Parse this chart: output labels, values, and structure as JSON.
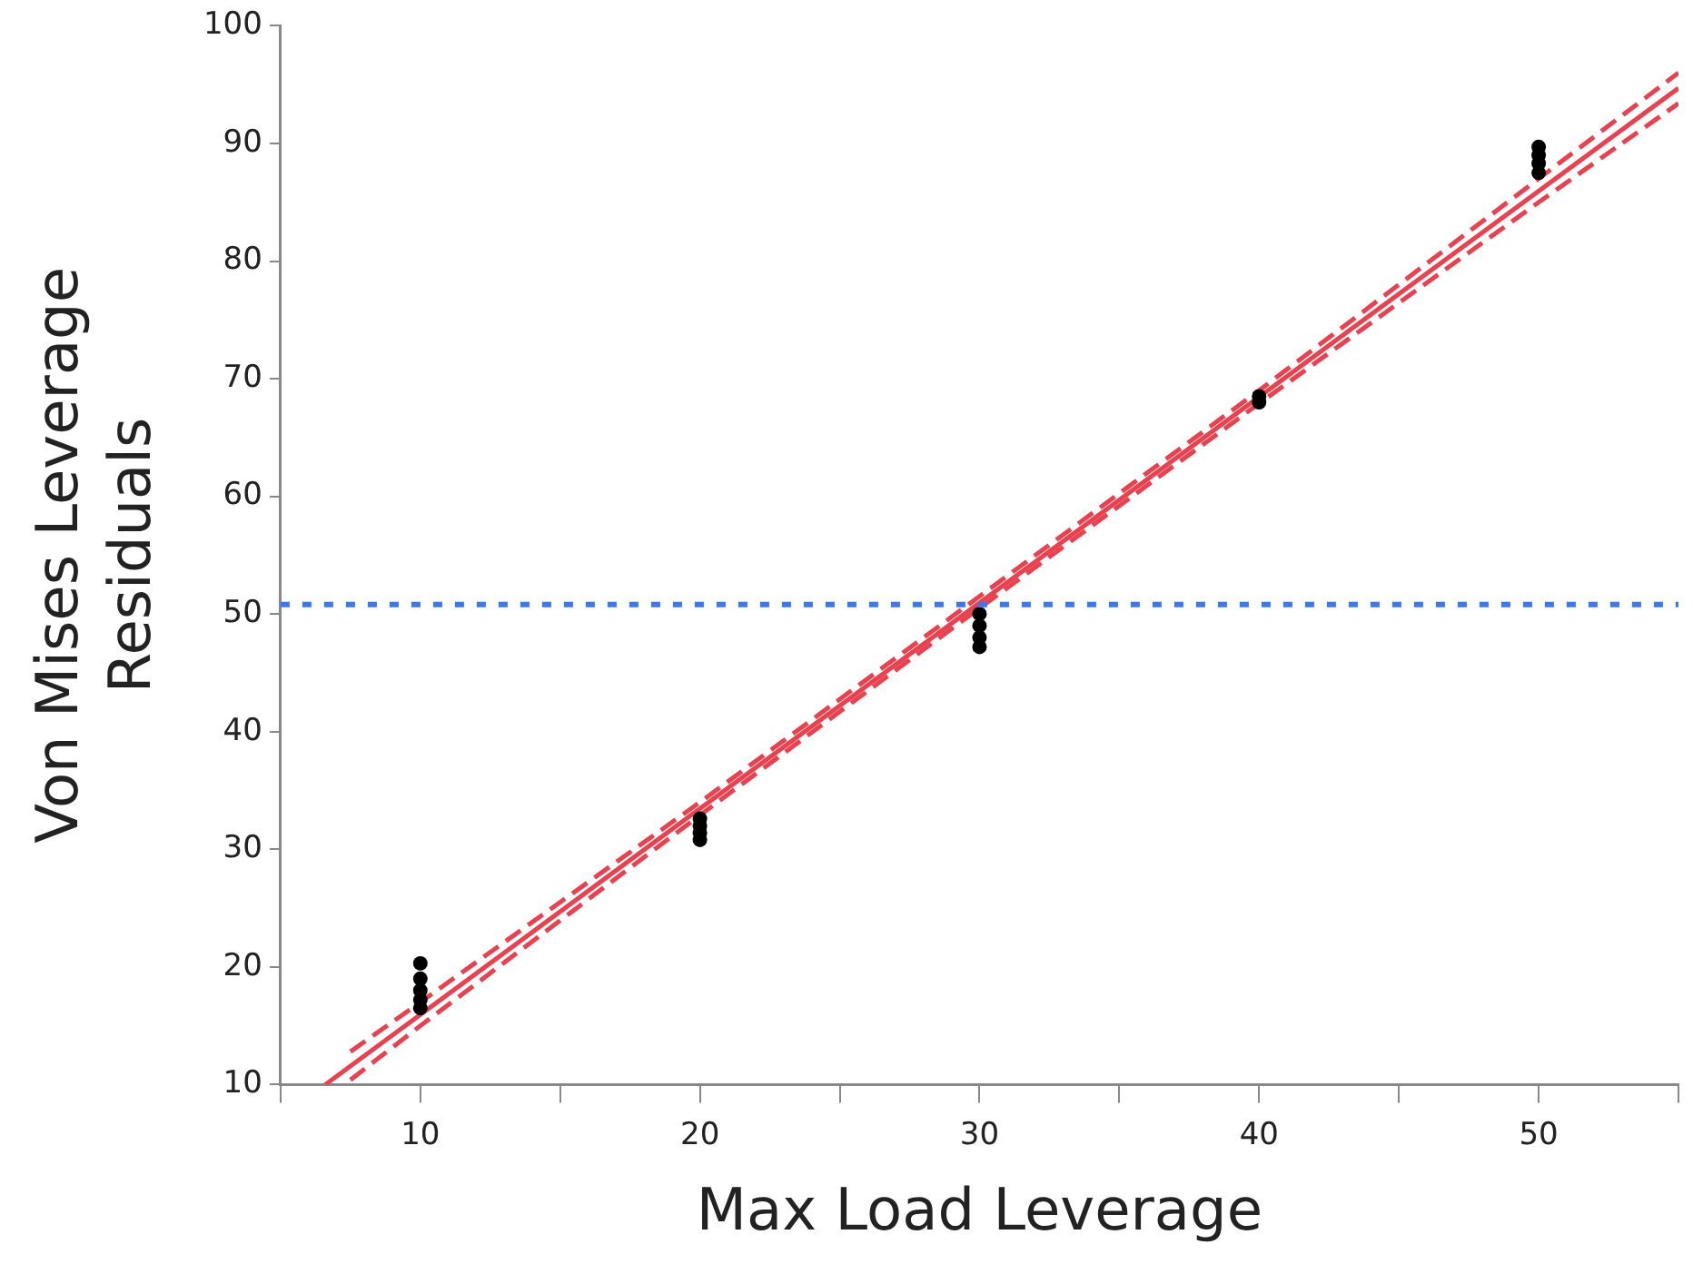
{
  "chart_data": {
    "type": "scatter",
    "xlabel": "Max Load Leverage",
    "ylabel": "Von Mises Leverage\nResiduals",
    "xlim": [
      5,
      55
    ],
    "xticks": [
      {
        "value": 5,
        "label": null
      },
      10,
      {
        "value": 15,
        "label": null
      },
      20,
      {
        "value": 25,
        "label": null
      },
      30,
      {
        "value": 35,
        "label": null
      },
      40,
      {
        "value": 45,
        "label": null
      },
      50,
      {
        "value": 55,
        "label": null
      }
    ],
    "ylim": [
      10,
      100
    ],
    "yticks": [
      10,
      20,
      30,
      40,
      50,
      60,
      70,
      80,
      90,
      100
    ],
    "grid": false,
    "legend": false,
    "marker": "circle",
    "series": [
      {
        "type": "line",
        "color": "#e8414f",
        "line_style": "dashed",
        "marker": "none",
        "x": [
          7.5,
          10,
          20,
          30,
          40,
          50,
          55
        ],
        "values": [
          12.8,
          17,
          34,
          51.5,
          69,
          87,
          96
        ]
      },
      {
        "type": "line",
        "color": "#e8414f",
        "line_style": "dashed",
        "marker": "none",
        "x": [
          7.5,
          10,
          20,
          30,
          40,
          50,
          55
        ],
        "values": [
          10.4,
          15,
          32.9,
          50.5,
          67.9,
          85,
          93.4
        ]
      },
      {
        "type": "line",
        "color": "#e8414f",
        "line_style": "solid",
        "marker": "none",
        "x": [
          6.6,
          55
        ],
        "values": [
          10,
          94.7
        ]
      },
      {
        "type": "scatter",
        "color": "#000000",
        "x": [
          10,
          10,
          10,
          10,
          10,
          20,
          20,
          20,
          20,
          30,
          30,
          30,
          30,
          40,
          40,
          50,
          50,
          50,
          50
        ],
        "values": [
          16.5,
          17.2,
          18,
          19,
          20.3,
          30.8,
          31.4,
          32,
          32.6,
          47.2,
          48,
          49,
          50,
          68,
          68.5,
          87.5,
          88.3,
          89,
          89.7
        ]
      }
    ],
    "ref_lines": [
      {
        "axis": "y",
        "value": 50.8,
        "color": "#3b78f0",
        "line_style": "dotted"
      }
    ]
  }
}
